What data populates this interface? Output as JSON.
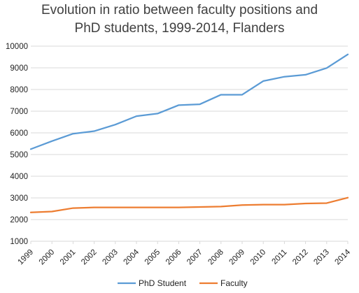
{
  "chart_data": {
    "type": "line",
    "title_lines": [
      "Evolution in ratio between faculty positions and",
      "PhD students, 1999-2014, Flanders"
    ],
    "x": [
      "1999",
      "2000",
      "2001",
      "2002",
      "2003",
      "2004",
      "2005",
      "2006",
      "2007",
      "2008",
      "2009",
      "2010",
      "2011",
      "2012",
      "2013",
      "2014"
    ],
    "ylim": [
      1000,
      10000
    ],
    "yticks": [
      1000,
      2000,
      3000,
      4000,
      5000,
      6000,
      7000,
      8000,
      9000,
      10000
    ],
    "grid": true,
    "legend_position": "bottom",
    "series": [
      {
        "name": "PhD Student",
        "color": "#5B9BD5",
        "values": [
          5250,
          5620,
          5960,
          6080,
          6380,
          6770,
          6890,
          7280,
          7320,
          7760,
          7760,
          8390,
          8590,
          8680,
          8990,
          9620
        ]
      },
      {
        "name": "Faculty",
        "color": "#ED7D31",
        "values": [
          2330,
          2370,
          2530,
          2560,
          2560,
          2560,
          2560,
          2560,
          2580,
          2600,
          2670,
          2690,
          2690,
          2740,
          2760,
          3010
        ]
      }
    ]
  }
}
